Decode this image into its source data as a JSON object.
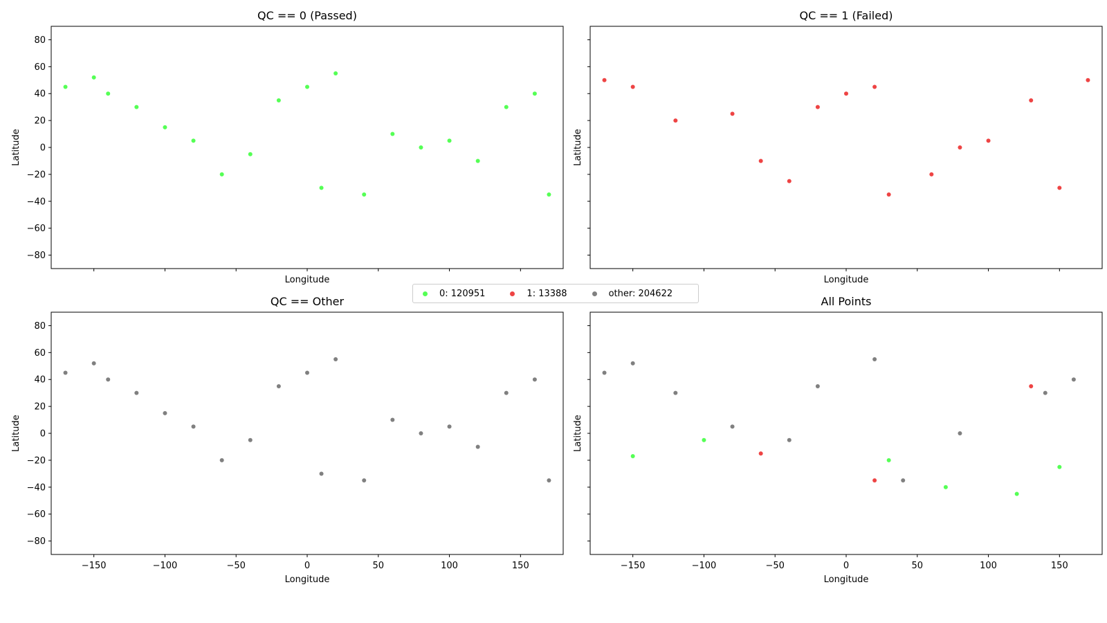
{
  "chart_data": [
    {
      "type": "scatter",
      "title": "QC == 0 (Passed)",
      "xlabel": "Longitude",
      "ylabel": "Latitude",
      "xlim": [
        -180,
        180
      ],
      "ylim": [
        -90,
        90
      ],
      "xticks": [
        -150,
        -100,
        -50,
        0,
        50,
        100,
        150
      ],
      "yticks": [
        -80,
        -60,
        -40,
        -20,
        0,
        20,
        40,
        60,
        80
      ],
      "show_xticklabels": false,
      "show_yticklabels": true,
      "series": [
        {
          "color": "#55ff55",
          "approx_points": [
            [
              -170,
              45
            ],
            [
              -150,
              52
            ],
            [
              -140,
              40
            ],
            [
              -120,
              30
            ],
            [
              -100,
              15
            ],
            [
              -80,
              5
            ],
            [
              -60,
              -20
            ],
            [
              -40,
              -5
            ],
            [
              -20,
              35
            ],
            [
              0,
              45
            ],
            [
              20,
              55
            ],
            [
              10,
              -30
            ],
            [
              40,
              -35
            ],
            [
              60,
              10
            ],
            [
              80,
              0
            ],
            [
              100,
              5
            ],
            [
              120,
              -10
            ],
            [
              140,
              30
            ],
            [
              160,
              40
            ],
            [
              170,
              -35
            ]
          ]
        }
      ]
    },
    {
      "type": "scatter",
      "title": "QC == 1 (Failed)",
      "xlabel": "Longitude",
      "ylabel": "Latitude",
      "xlim": [
        -180,
        180
      ],
      "ylim": [
        -90,
        90
      ],
      "xticks": [
        -150,
        -100,
        -50,
        0,
        50,
        100,
        150
      ],
      "yticks": [
        -80,
        -60,
        -40,
        -20,
        0,
        20,
        40,
        60,
        80
      ],
      "show_xticklabels": false,
      "show_yticklabels": false,
      "series": [
        {
          "color": "#ee4444",
          "approx_points": [
            [
              -170,
              50
            ],
            [
              -150,
              45
            ],
            [
              -120,
              20
            ],
            [
              -80,
              25
            ],
            [
              -60,
              -10
            ],
            [
              -40,
              -25
            ],
            [
              -20,
              30
            ],
            [
              0,
              40
            ],
            [
              20,
              45
            ],
            [
              30,
              -35
            ],
            [
              60,
              -20
            ],
            [
              80,
              0
            ],
            [
              100,
              5
            ],
            [
              130,
              35
            ],
            [
              150,
              -30
            ],
            [
              170,
              50
            ]
          ]
        }
      ]
    },
    {
      "type": "scatter",
      "title": "QC == Other",
      "xlabel": "Longitude",
      "ylabel": "Latitude",
      "xlim": [
        -180,
        180
      ],
      "ylim": [
        -90,
        90
      ],
      "xticks": [
        -150,
        -100,
        -50,
        0,
        50,
        100,
        150
      ],
      "yticks": [
        -80,
        -60,
        -40,
        -20,
        0,
        20,
        40,
        60,
        80
      ],
      "show_xticklabels": true,
      "show_yticklabels": true,
      "series": [
        {
          "color": "#808080",
          "approx_points": [
            [
              -170,
              45
            ],
            [
              -150,
              52
            ],
            [
              -140,
              40
            ],
            [
              -120,
              30
            ],
            [
              -100,
              15
            ],
            [
              -80,
              5
            ],
            [
              -60,
              -20
            ],
            [
              -40,
              -5
            ],
            [
              -20,
              35
            ],
            [
              0,
              45
            ],
            [
              20,
              55
            ],
            [
              10,
              -30
            ],
            [
              40,
              -35
            ],
            [
              60,
              10
            ],
            [
              80,
              0
            ],
            [
              100,
              5
            ],
            [
              120,
              -10
            ],
            [
              140,
              30
            ],
            [
              160,
              40
            ],
            [
              170,
              -35
            ]
          ]
        }
      ]
    },
    {
      "type": "scatter",
      "title": "All Points",
      "xlabel": "Longitude",
      "ylabel": "Latitude",
      "xlim": [
        -180,
        180
      ],
      "ylim": [
        -90,
        90
      ],
      "xticks": [
        -150,
        -100,
        -50,
        0,
        50,
        100,
        150
      ],
      "yticks": [
        -80,
        -60,
        -40,
        -20,
        0,
        20,
        40,
        60,
        80
      ],
      "show_xticklabels": true,
      "show_yticklabels": false,
      "series": [
        {
          "color": "#808080",
          "approx_points": [
            [
              -170,
              45
            ],
            [
              -150,
              52
            ],
            [
              -120,
              30
            ],
            [
              -80,
              5
            ],
            [
              -40,
              -5
            ],
            [
              -20,
              35
            ],
            [
              20,
              55
            ],
            [
              40,
              -35
            ],
            [
              80,
              0
            ],
            [
              140,
              30
            ],
            [
              160,
              40
            ]
          ]
        },
        {
          "color": "#55ff55",
          "approx_points": [
            [
              -150,
              -17
            ],
            [
              -100,
              -5
            ],
            [
              30,
              -20
            ],
            [
              70,
              -40
            ],
            [
              120,
              -45
            ],
            [
              150,
              -25
            ]
          ]
        },
        {
          "color": "#ee4444",
          "approx_points": [
            [
              -60,
              -15
            ],
            [
              20,
              -35
            ],
            [
              130,
              35
            ]
          ]
        }
      ]
    }
  ],
  "legend": {
    "placement": "center",
    "entries": [
      {
        "label": "0: 120951",
        "color": "#55ff55"
      },
      {
        "label": "1: 13388",
        "color": "#ee4444"
      },
      {
        "label": "other: 204622",
        "color": "#808080"
      }
    ]
  }
}
